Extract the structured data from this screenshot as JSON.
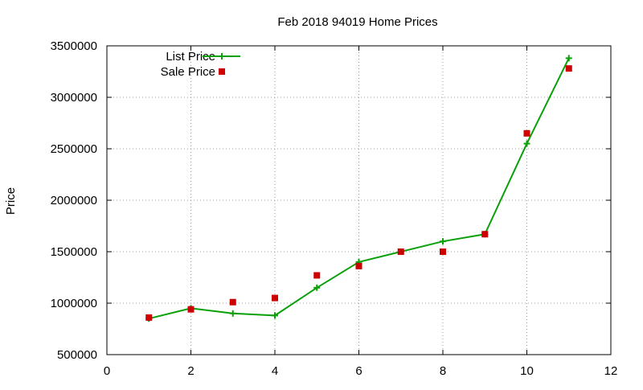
{
  "chart_data": {
    "type": "line",
    "title": "Feb 2018 94019 Home Prices",
    "xlabel": "",
    "ylabel": "Price",
    "xlim": [
      0,
      12
    ],
    "ylim": [
      500000,
      3500000
    ],
    "xticks": [
      0,
      2,
      4,
      6,
      8,
      10,
      12
    ],
    "yticks": [
      500000,
      1000000,
      1500000,
      2000000,
      2500000,
      3000000,
      3500000
    ],
    "xtick_labels": [
      "0",
      "2",
      "4",
      "6",
      "8",
      "10",
      "12"
    ],
    "ytick_labels": [
      "500000",
      "1000000",
      "1500000",
      "2000000",
      "2500000",
      "3000000",
      "3500000"
    ],
    "grid": true,
    "legend_position": "top-left",
    "series": [
      {
        "name": "List Price",
        "style": "line-with-plus-markers",
        "color": "#0aa00a",
        "x": [
          1,
          2,
          3,
          4,
          5,
          6,
          7,
          8,
          9,
          10,
          11
        ],
        "values": [
          850000,
          950000,
          900000,
          880000,
          1150000,
          1400000,
          1500000,
          1600000,
          1670000,
          2550000,
          3380000
        ]
      },
      {
        "name": "Sale Price",
        "style": "square-markers",
        "color": "#cc0000",
        "x": [
          1,
          2,
          3,
          4,
          5,
          6,
          7,
          8,
          9,
          10,
          11
        ],
        "values": [
          860000,
          940000,
          1010000,
          1050000,
          1270000,
          1360000,
          1500000,
          1500000,
          1670000,
          2650000,
          3280000
        ]
      }
    ]
  }
}
